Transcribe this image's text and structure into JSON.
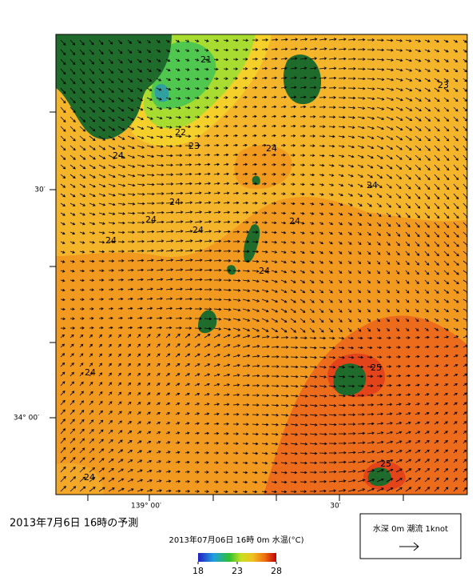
{
  "map": {
    "y_axis_labels": [
      "30′",
      "34° 00′"
    ],
    "x_axis_labels": [
      "139° 00′",
      "30′"
    ],
    "contour_labels": [
      21,
      22,
      23,
      24,
      24,
      24,
      24,
      24,
      24,
      24,
      24,
      24,
      24,
      24,
      25,
      25,
      23
    ]
  },
  "caption": "2013年7月6日 16時の予測",
  "colorbar": {
    "title": "2013年07月06日 16時 0m 水温(°C)",
    "range": [
      18,
      28
    ],
    "ticks": [
      18,
      23,
      28
    ]
  },
  "legend": {
    "label": "水深 0m 潮流 1knot"
  }
}
